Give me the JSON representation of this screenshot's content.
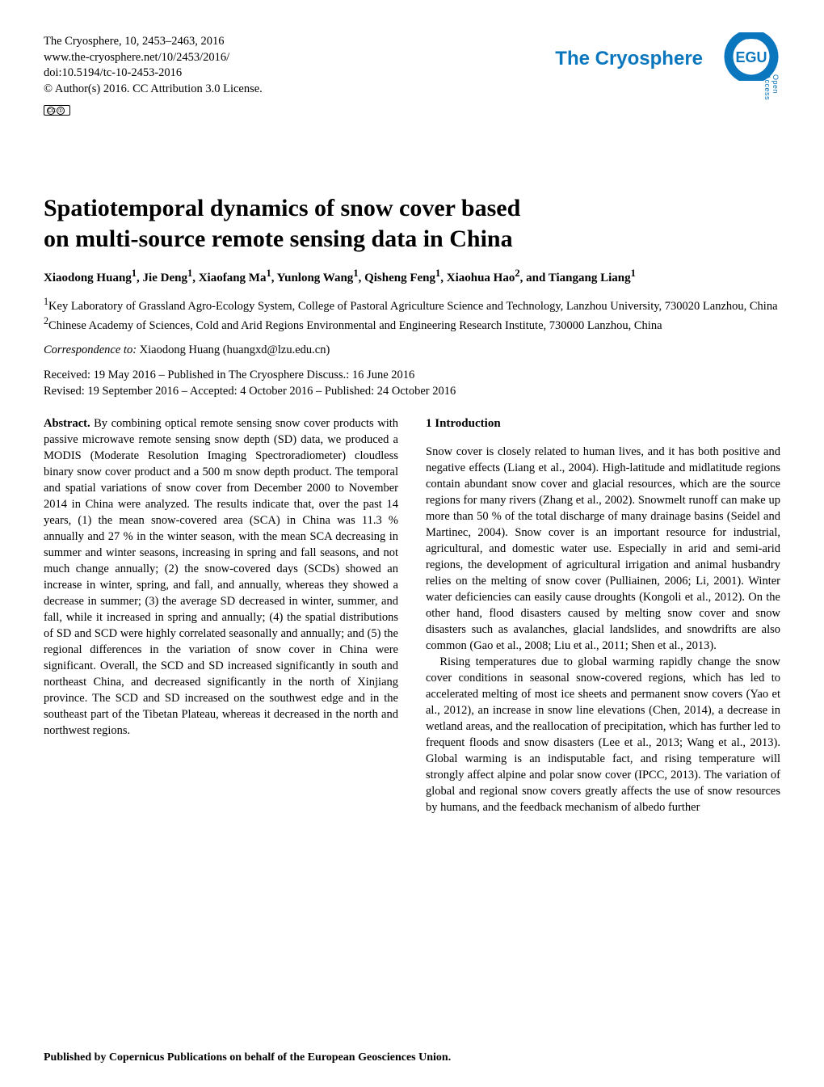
{
  "header": {
    "journal_line": "The Cryosphere, 10, 2453–2463, 2016",
    "url_line": "www.the-cryosphere.net/10/2453/2016/",
    "doi_line": "doi:10.5194/tc-10-2453-2016",
    "copyright_line": "© Author(s) 2016. CC Attribution 3.0 License.",
    "cc_label": "CC",
    "cc_by": "BY"
  },
  "logo": {
    "journal_name": "The Cryosphere",
    "open_access": "Open Access",
    "egu_text": "EGU",
    "colors": {
      "journal_blue": "#0a76bd",
      "egu_blue": "#0a76bd",
      "egu_gap": "#ffffff"
    }
  },
  "title": {
    "line1": "Spatiotemporal dynamics of snow cover based",
    "line2": "on multi-source remote sensing data in China"
  },
  "authors_html": "Xiaodong Huang<sup>1</sup>, Jie Deng<sup>1</sup>, Xiaofang Ma<sup>1</sup>, Yunlong Wang<sup>1</sup>, Qisheng Feng<sup>1</sup>, Xiaohua Hao<sup>2</sup>, and Tiangang Liang<sup>1</sup>",
  "affiliations": {
    "a1": "<sup>1</sup>Key Laboratory of Grassland Agro-Ecology System, College of Pastoral Agriculture Science and Technology, Lanzhou University, 730020 Lanzhou, China",
    "a2": "<sup>2</sup>Chinese Academy of Sciences, Cold and Arid Regions Environmental and Engineering Research Institute, 730000 Lanzhou, China"
  },
  "correspondence": {
    "label": "Correspondence to:",
    "text": " Xiaodong Huang (huangxd@lzu.edu.cn)"
  },
  "dates": {
    "line1": "Received: 19 May 2016 – Published in The Cryosphere Discuss.: 16 June 2016",
    "line2": "Revised: 19 September 2016 – Accepted: 4 October 2016 – Published: 24 October 2016"
  },
  "abstract": {
    "label": "Abstract.",
    "text": " By combining optical remote sensing snow cover products with passive microwave remote sensing snow depth (SD) data, we produced a MODIS (Moderate Resolution Imaging Spectroradiometer) cloudless binary snow cover product and a 500 m snow depth product. The temporal and spatial variations of snow cover from December 2000 to November 2014 in China were analyzed. The results indicate that, over the past 14 years, (1) the mean snow-covered area (SCA) in China was 11.3 % annually and 27 % in the winter season, with the mean SCA decreasing in summer and winter seasons, increasing in spring and fall seasons, and not much change annually; (2) the snow-covered days (SCDs) showed an increase in winter, spring, and fall, and annually, whereas they showed a decrease in summer; (3) the average SD decreased in winter, summer, and fall, while it increased in spring and annually; (4) the spatial distributions of SD and SCD were highly correlated seasonally and annually; and (5) the regional differences in the variation of snow cover in China were significant. Overall, the SCD and SD increased significantly in south and northeast China, and decreased significantly in the north of Xinjiang province. The SCD and SD increased on the southwest edge and in the southeast part of the Tibetan Plateau, whereas it decreased in the north and northwest regions."
  },
  "intro": {
    "heading": "1   Introduction",
    "p1": "Snow cover is closely related to human lives, and it has both positive and negative effects (Liang et al., 2004). High-latitude and midlatitude regions contain abundant snow cover and glacial resources, which are the source regions for many rivers (Zhang et al., 2002). Snowmelt runoff can make up more than 50 % of the total discharge of many drainage basins (Seidel and Martinec, 2004). Snow cover is an important resource for industrial, agricultural, and domestic water use. Especially in arid and semi-arid regions, the development of agricultural irrigation and animal husbandry relies on the melting of snow cover (Pulliainen, 2006; Li, 2001). Winter water deficiencies can easily cause droughts (Kongoli et al., 2012). On the other hand, flood disasters caused by melting snow cover and snow disasters such as avalanches, glacial landslides, and snowdrifts are also common (Gao et al., 2008; Liu et al., 2011; Shen et al., 2013).",
    "p2": "Rising temperatures due to global warming rapidly change the snow cover conditions in seasonal snow-covered regions, which has led to accelerated melting of most ice sheets and permanent snow covers (Yao et al., 2012), an increase in snow line elevations (Chen, 2014), a decrease in wetland areas, and the reallocation of precipitation, which has further led to frequent floods and snow disasters (Lee et al., 2013; Wang et al., 2013). Global warming is an indisputable fact, and rising temperature will strongly affect alpine and polar snow cover (IPCC, 2013). The variation of global and regional snow covers greatly affects the use of snow resources by humans, and the feedback mechanism of albedo further"
  },
  "footer": "Published by Copernicus Publications on behalf of the European Geosciences Union."
}
